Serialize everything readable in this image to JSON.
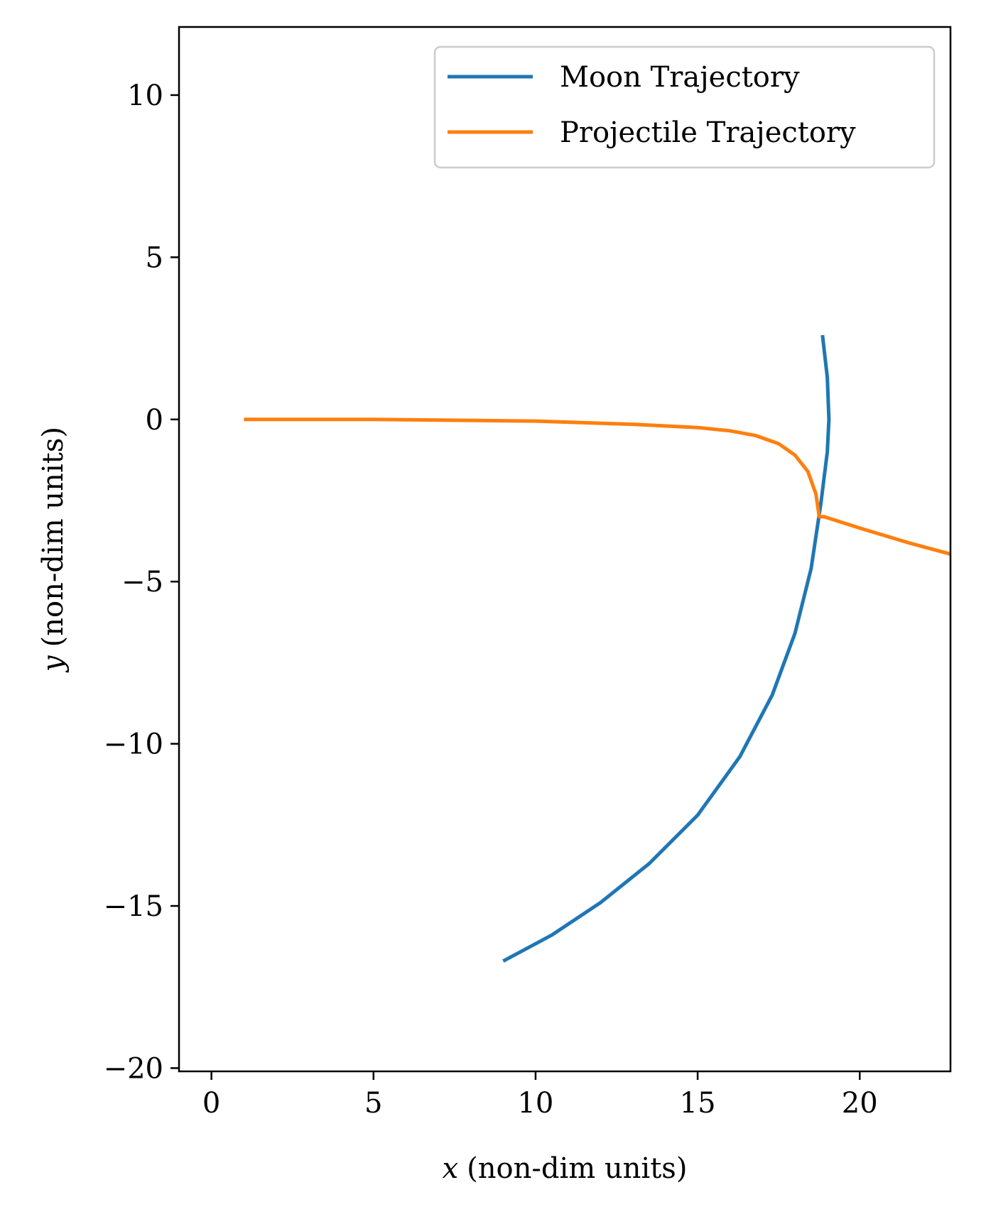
{
  "chart_data": {
    "type": "line",
    "xlabel_var": "x",
    "xlabel": "(non-dim units)",
    "ylabel_var": "y",
    "ylabel": "(non-dim units)",
    "xlim": [
      -1,
      22.8
    ],
    "ylim": [
      -20.1,
      12.1
    ],
    "xticks": [
      0,
      5,
      10,
      15,
      20
    ],
    "yticks": [
      10,
      5,
      0,
      -5,
      -10,
      -15,
      -20
    ],
    "xtick_labels": [
      "0",
      "5",
      "10",
      "15",
      "20"
    ],
    "ytick_labels": [
      "10",
      "5",
      "0",
      "−5",
      "−10",
      "−15",
      "−20"
    ],
    "grid": false,
    "legend_position": "top-right",
    "series": [
      {
        "name": "Moon Trajectory",
        "color": "#1f77b4",
        "points": [
          [
            9.0,
            -16.7
          ],
          [
            10.5,
            -15.9
          ],
          [
            12.0,
            -14.9
          ],
          [
            13.5,
            -13.7
          ],
          [
            15.0,
            -12.2
          ],
          [
            16.3,
            -10.4
          ],
          [
            17.3,
            -8.5
          ],
          [
            18.0,
            -6.6
          ],
          [
            18.5,
            -4.6
          ],
          [
            18.8,
            -2.6
          ],
          [
            19.0,
            -1.0
          ],
          [
            19.05,
            0.0
          ],
          [
            19.0,
            1.3
          ],
          [
            18.85,
            2.6
          ]
        ]
      },
      {
        "name": "Projectile Trajectory",
        "color": "#ff7f0e",
        "points": [
          [
            1.0,
            0.0
          ],
          [
            5.0,
            0.0
          ],
          [
            10.0,
            -0.05
          ],
          [
            13.0,
            -0.15
          ],
          [
            15.0,
            -0.25
          ],
          [
            16.0,
            -0.35
          ],
          [
            16.8,
            -0.5
          ],
          [
            17.5,
            -0.75
          ],
          [
            18.0,
            -1.1
          ],
          [
            18.4,
            -1.6
          ],
          [
            18.65,
            -2.3
          ],
          [
            18.75,
            -3.0
          ],
          [
            18.9,
            -3.0
          ],
          [
            20.0,
            -3.35
          ],
          [
            21.5,
            -3.8
          ],
          [
            22.8,
            -4.15
          ]
        ]
      }
    ]
  }
}
